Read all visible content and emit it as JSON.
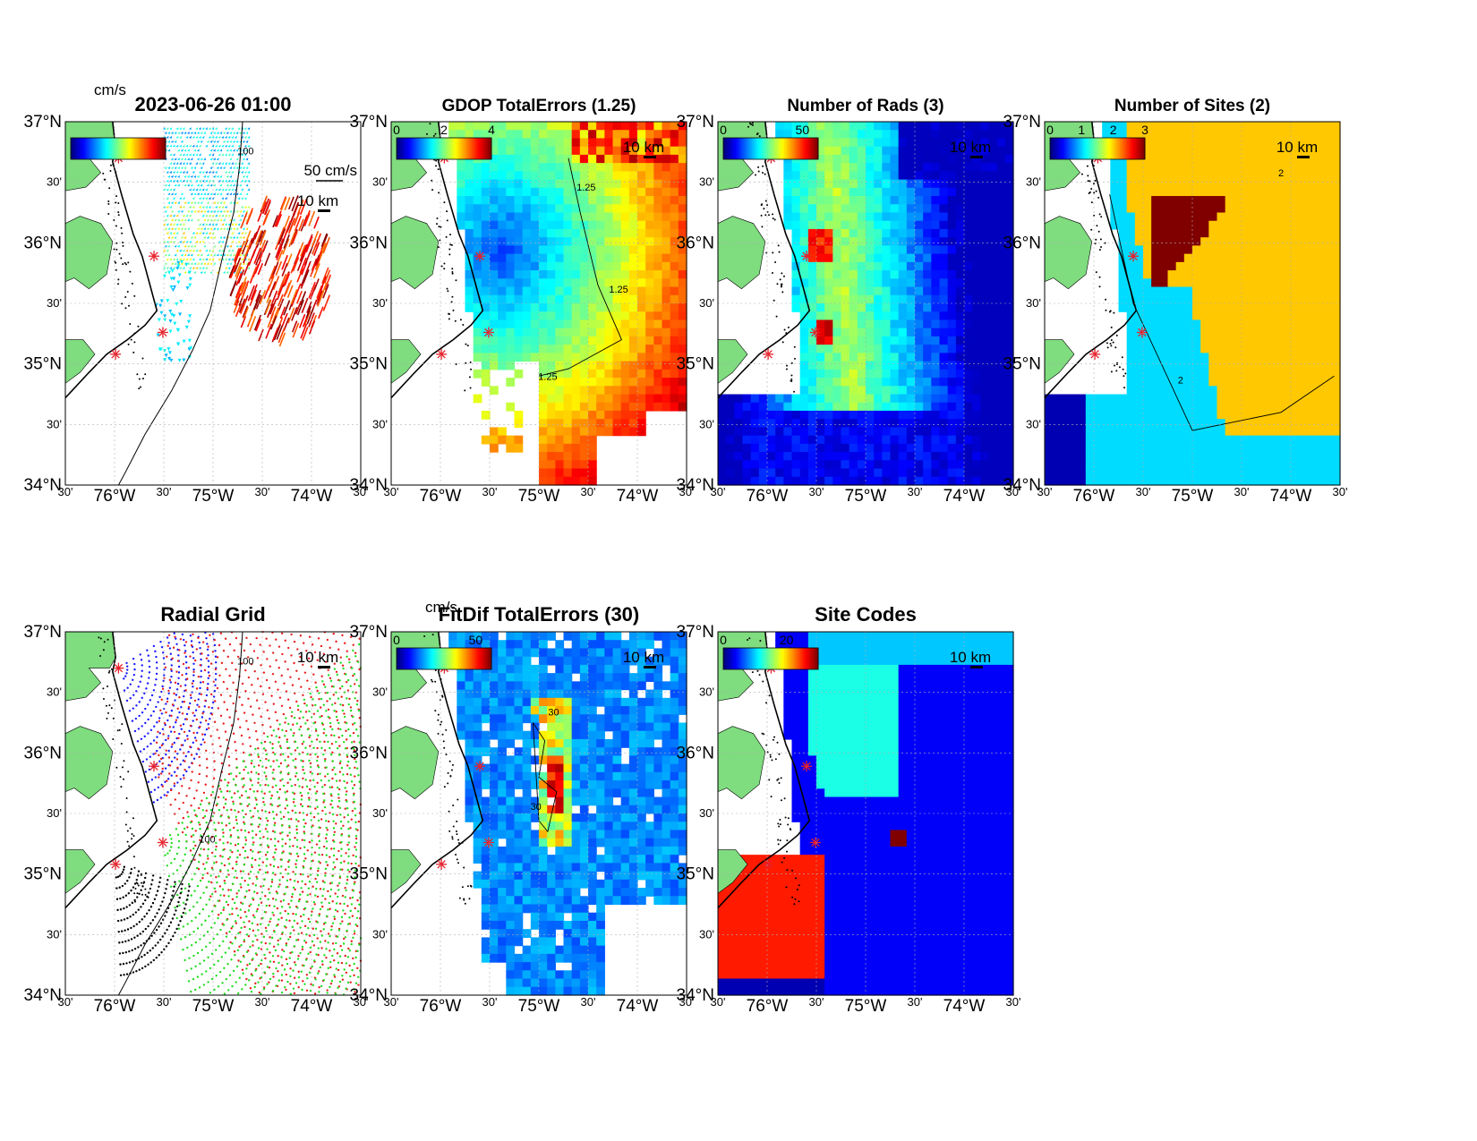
{
  "figure_timestamp": "2023-06-26 01:00",
  "axis_ticks": {
    "lat": [
      "34°N",
      "30'",
      "35°N",
      "30'",
      "36°N",
      "30'",
      "37°N"
    ],
    "lon": [
      "30'",
      "76°W",
      "30'",
      "75°W",
      "30'",
      "74°W",
      "30'"
    ]
  },
  "scale_bar_label": "10 km",
  "colors": {
    "land": "#7fdc7f",
    "site_marker": "#e8202a",
    "coastline": "#000000",
    "grid": "#b0b0b0"
  },
  "chart_data": [
    {
      "id": "velocity",
      "type": "quiver",
      "title": "",
      "units_label": "cm/s",
      "arrow_scale_label": "50 cm/s",
      "xlim": [
        "76°30'W",
        "73°30'W"
      ],
      "ylim": [
        "34°N",
        "37°N"
      ],
      "colormap": "jet",
      "bathymetry_contour": "100"
    },
    {
      "id": "gdop",
      "type": "heatmap",
      "title": "GDOP TotalErrors (1.25)",
      "colorbar_ticks": [
        "0",
        "2",
        "4"
      ],
      "clim": [
        0,
        4
      ],
      "contour_level": "1.25",
      "colormap": "jet"
    },
    {
      "id": "nrads",
      "type": "heatmap",
      "title": "Number of Rads (3)",
      "colorbar_ticks": [
        "0",
        "50"
      ],
      "clim": [
        0,
        60
      ],
      "contour_level": "3",
      "colormap": "jet"
    },
    {
      "id": "nsites",
      "type": "heatmap",
      "title": "Number of Sites (2)",
      "colorbar_ticks": [
        "0",
        "1",
        "2",
        "3"
      ],
      "clim": [
        0,
        3
      ],
      "contour_level": "2",
      "colormap": "jet"
    },
    {
      "id": "radial_grid",
      "type": "scatter",
      "title": "Radial Grid",
      "series_colors": [
        "#1a1aff",
        "#e82020",
        "#22dd22",
        "#000000"
      ],
      "bathymetry_contour": "100"
    },
    {
      "id": "fitdif",
      "type": "heatmap",
      "title": "FitDif TotalErrors (30)",
      "units_label": "cm/s",
      "colorbar_ticks": [
        "0",
        "50"
      ],
      "clim": [
        0,
        60
      ],
      "contour_level": "30",
      "colormap": "jet"
    },
    {
      "id": "sitecodes",
      "type": "heatmap",
      "title": "Site Codes",
      "colorbar_ticks": [
        "0",
        "20"
      ],
      "clim": [
        0,
        30
      ],
      "colormap": "jet"
    }
  ]
}
